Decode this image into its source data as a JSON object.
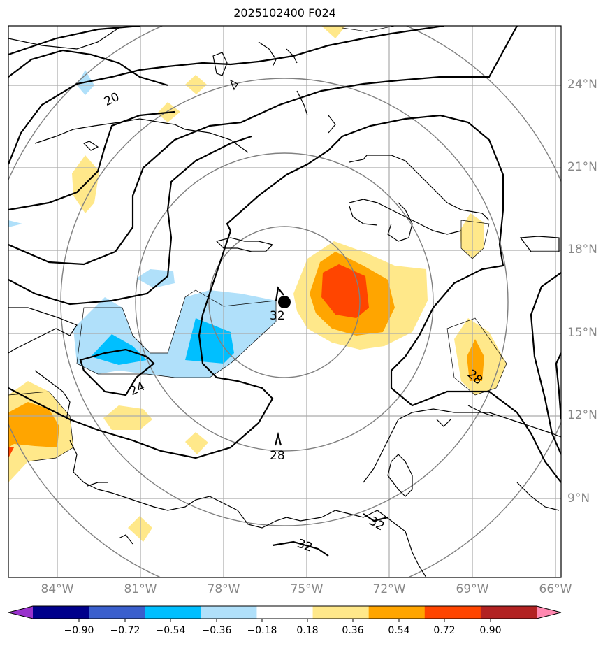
{
  "title": "2025102400 F024",
  "map": {
    "lat_ticks": [
      "24°N",
      "21°N",
      "18°N",
      "15°N",
      "12°N",
      "9°N"
    ],
    "lon_ticks": [
      "84°W",
      "81°W",
      "78°W",
      "75°W",
      "72°W",
      "69°W",
      "66°W"
    ],
    "contour_labels": [
      "20",
      "24",
      "32",
      "28",
      "28",
      "32",
      "32"
    ],
    "storm_marker": "filled-black-circle"
  },
  "colorbar": {
    "tick_labels": [
      "−0.90",
      "−0.72",
      "−0.54",
      "−0.36",
      "−0.18",
      "0.18",
      "0.36",
      "0.54",
      "0.72",
      "0.90"
    ],
    "colors": [
      "#9932cc",
      "#00008b",
      "#3a5fcd",
      "#00bfff",
      "#b0e0fa",
      "#ffffff",
      "#ffe88a",
      "#ffa500",
      "#ff4500",
      "#b22222",
      "#ff88b0"
    ]
  }
}
